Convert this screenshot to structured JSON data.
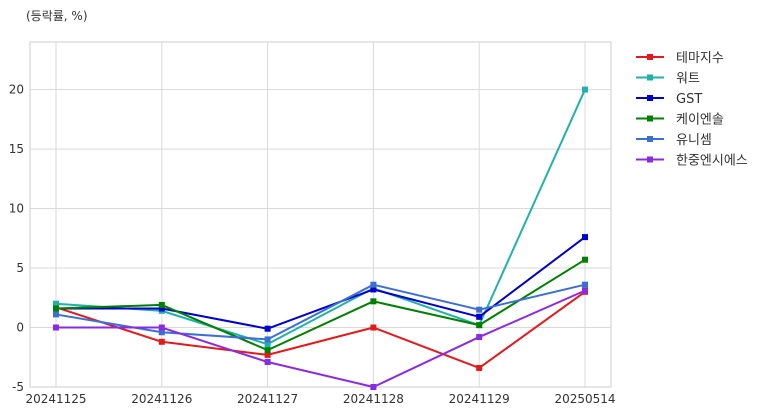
{
  "unit_label": "(등락률, %)",
  "chart_data": {
    "type": "line",
    "title": "",
    "xlabel": "",
    "ylabel": "(등락률, %)",
    "categories": [
      "20241125",
      "20241126",
      "20241127",
      "20241128",
      "20241129",
      "20250514"
    ],
    "ylim": [
      -5,
      24
    ],
    "yticks": [
      -5,
      0,
      5,
      10,
      15,
      20
    ],
    "grid": true,
    "legend_position": "right",
    "series": [
      {
        "name": "테마지수",
        "color": "#e31a1c",
        "values": [
          1.7,
          -1.2,
          -2.3,
          0.0,
          -3.4,
          3.0
        ]
      },
      {
        "name": "워트",
        "color": "#20b2aa",
        "values": [
          2.0,
          1.4,
          -1.4,
          3.3,
          0.2,
          20.0
        ]
      },
      {
        "name": "GST",
        "color": "#0000cd",
        "values": [
          1.6,
          1.6,
          -0.1,
          3.2,
          0.9,
          7.6
        ]
      },
      {
        "name": "케이엔솔",
        "color": "#008000",
        "values": [
          1.6,
          1.9,
          -1.9,
          2.2,
          0.2,
          5.7
        ]
      },
      {
        "name": "유니셈",
        "color": "#3c6fd6",
        "values": [
          1.1,
          -0.4,
          -1.0,
          3.6,
          1.5,
          3.6
        ]
      },
      {
        "name": "한중엔시에스",
        "color": "#8a2be2",
        "values": [
          0.0,
          0.0,
          -2.9,
          -5.0,
          -0.8,
          3.1
        ]
      }
    ]
  }
}
